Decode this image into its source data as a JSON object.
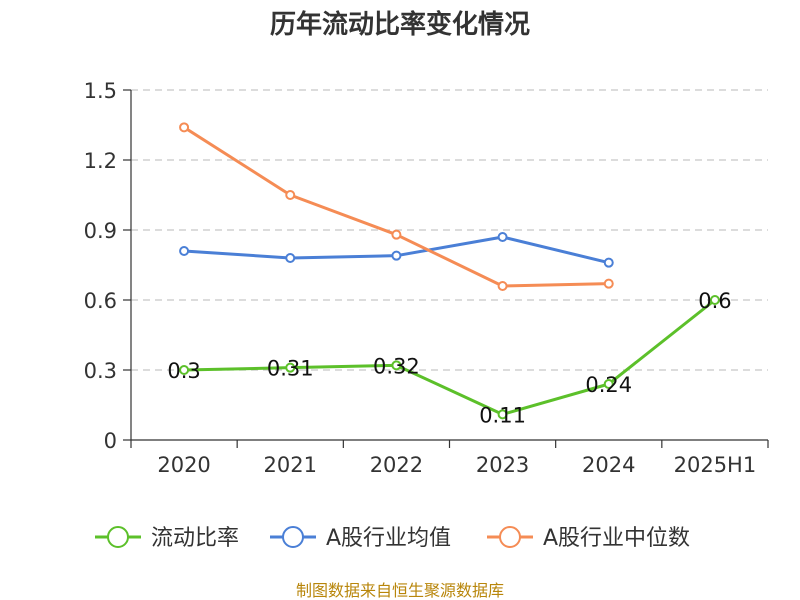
{
  "chart_data": {
    "type": "line",
    "title": "历年流动比率变化情况",
    "categories": [
      "2020",
      "2021",
      "2022",
      "2023",
      "2024",
      "2025H1"
    ],
    "ylim": [
      0,
      1.5
    ],
    "yticks": [
      "0",
      "0.3",
      "0.6",
      "0.9",
      "1.2",
      "1.5"
    ],
    "ytick_values": [
      0,
      0.3,
      0.6,
      0.9,
      1.2,
      1.5
    ],
    "grid": true,
    "legend_position": "bottom",
    "series": [
      {
        "name": "流动比率",
        "color": "#5cc02a",
        "values": [
          0.3,
          0.31,
          0.32,
          0.11,
          0.24,
          0.6
        ],
        "labels": [
          "0.3",
          "0.31",
          "0.32",
          "0.11",
          "0.24",
          "0.6"
        ]
      },
      {
        "name": "A股行业均值",
        "color": "#4a7fd6",
        "values": [
          0.81,
          0.78,
          0.79,
          0.87,
          0.76,
          null
        ]
      },
      {
        "name": "A股行业中位数",
        "color": "#f58c55",
        "values": [
          1.34,
          1.05,
          0.88,
          0.66,
          0.67,
          null
        ]
      }
    ],
    "source": "制图数据来自恒生聚源数据库"
  }
}
